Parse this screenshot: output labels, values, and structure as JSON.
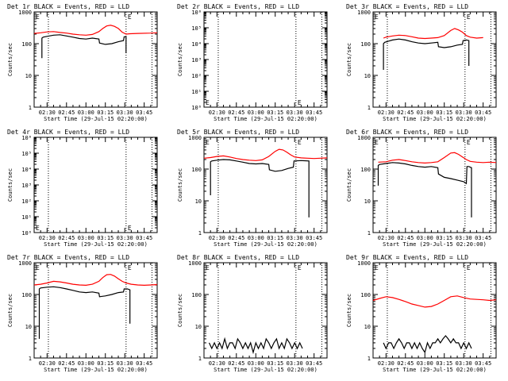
{
  "chart_data": [
    {
      "type": "line",
      "title": "Det 1r BLACK = Events, RED = LLD",
      "ylabel": "Counts/sec",
      "xlabel": "Start Time (29-Jul-15 02:20:00)",
      "yscale": "log",
      "ylim": [
        1,
        1000
      ],
      "ytick_labels": [
        "1",
        "10",
        "100",
        "1000"
      ],
      "ytick_values": [
        1,
        10,
        100,
        1000
      ],
      "xlim_minutes": [
        0,
        95
      ],
      "xtick_labels": [
        "02:30",
        "02:45",
        "03:00",
        "03:15",
        "03:30",
        "03:45"
      ],
      "xtick_minutes": [
        10,
        25,
        40,
        55,
        70,
        85
      ],
      "vlines_minutes": [
        11,
        71,
        91
      ],
      "markers": [
        "E",
        "E"
      ],
      "series": [
        {
          "color": "#ff0000",
          "x": [
            0,
            5,
            10,
            15,
            20,
            25,
            30,
            35,
            40,
            45,
            50,
            53,
            56,
            59,
            62,
            65,
            68,
            71,
            74,
            80,
            90,
            95
          ],
          "y": [
            210,
            220,
            235,
            240,
            225,
            215,
            200,
            190,
            185,
            195,
            240,
            300,
            360,
            380,
            350,
            300,
            230,
            200,
            205,
            210,
            215,
            220
          ]
        },
        {
          "color": "#000000",
          "x": [
            6,
            6,
            7,
            10,
            15,
            20,
            25,
            30,
            35,
            40,
            45,
            50,
            50.5,
            55,
            60,
            65,
            69,
            69.5,
            71,
            71
          ],
          "y": [
            35,
            150,
            160,
            170,
            185,
            190,
            175,
            160,
            145,
            140,
            150,
            140,
            105,
            95,
            100,
            115,
            125,
            165,
            165,
            50
          ]
        }
      ]
    },
    {
      "type": "line",
      "title": "Det 2r BLACK = Events, RED = LLD",
      "ylabel": "Counts/sec",
      "xlabel": "Start Time (29-Jul-15 02:20:00)",
      "yscale": "log",
      "ylim": [
        1,
        1000000
      ],
      "ytick_labels": [
        "10⁰",
        "10¹",
        "10²",
        "10³",
        "10⁴",
        "10⁵",
        "10⁶"
      ],
      "ytick_values": [
        1,
        10,
        100,
        1000,
        10000,
        100000,
        1000000
      ],
      "xlim_minutes": [
        0,
        95
      ],
      "xtick_labels": [
        "02:30",
        "02:45",
        "03:00",
        "03:15",
        "03:30",
        "03:45"
      ],
      "xtick_minutes": [
        10,
        25,
        40,
        55,
        70,
        85
      ],
      "vlines_minutes": [
        11,
        71,
        91
      ],
      "markers": [
        "E",
        "E"
      ],
      "series": []
    },
    {
      "type": "line",
      "title": "Det 3r BLACK = Events, RED = LLD",
      "ylabel": "Counts/sec",
      "xlabel": "Start Time (29-Jul-15 02:20:00)",
      "yscale": "log",
      "ylim": [
        1,
        1000
      ],
      "ytick_labels": [
        "1",
        "10",
        "100",
        "1000"
      ],
      "ytick_values": [
        1,
        10,
        100,
        1000
      ],
      "xlim_minutes": [
        0,
        95
      ],
      "xtick_labels": [
        "02:30",
        "02:45",
        "03:00",
        "03:15",
        "03:30",
        "03:45"
      ],
      "xtick_minutes": [
        10,
        25,
        40,
        55,
        70,
        85
      ],
      "vlines_minutes": [
        11,
        71,
        91
      ],
      "markers": [
        "E",
        "E"
      ],
      "series": [
        {
          "color": "#ff0000",
          "x": [
            8,
            10,
            15,
            20,
            25,
            30,
            35,
            40,
            45,
            50,
            55,
            60,
            63,
            66,
            69,
            72,
            75,
            80,
            85
          ],
          "y": [
            150,
            160,
            175,
            185,
            180,
            165,
            150,
            145,
            150,
            155,
            180,
            260,
            300,
            270,
            230,
            180,
            160,
            150,
            155
          ]
        },
        {
          "color": "#000000",
          "x": [
            8,
            8,
            9,
            12,
            15,
            20,
            25,
            30,
            35,
            40,
            45,
            50,
            50.5,
            55,
            60,
            65,
            69,
            69.5,
            72,
            74,
            74
          ],
          "y": [
            15,
            100,
            110,
            120,
            130,
            140,
            130,
            115,
            105,
            100,
            105,
            110,
            80,
            75,
            80,
            90,
            95,
            125,
            130,
            125,
            20
          ]
        }
      ]
    },
    {
      "type": "line",
      "title": "Det 4r BLACK = Events, RED = LLD",
      "ylabel": "Counts/sec",
      "xlabel": "Start Time (29-Jul-15 02:20:00)",
      "yscale": "log",
      "ylim": [
        1,
        1000000
      ],
      "ytick_labels": [
        "10⁰",
        "10¹",
        "10²",
        "10³",
        "10⁴",
        "10⁵",
        "10⁶"
      ],
      "ytick_values": [
        1,
        10,
        100,
        1000,
        10000,
        100000,
        1000000
      ],
      "xlim_minutes": [
        0,
        95
      ],
      "xtick_labels": [
        "02:30",
        "02:45",
        "03:00",
        "03:15",
        "03:30",
        "03:45"
      ],
      "xtick_minutes": [
        10,
        25,
        40,
        55,
        70,
        85
      ],
      "vlines_minutes": [
        11,
        71,
        91
      ],
      "markers": [
        "E",
        "E"
      ],
      "series": []
    },
    {
      "type": "line",
      "title": "Det 5r BLACK = Events, RED = LLD",
      "ylabel": "Counts/sec",
      "xlabel": "Start Time (29-Jul-15 02:20:00)",
      "yscale": "log",
      "ylim": [
        1,
        1000
      ],
      "ytick_labels": [
        "1",
        "10",
        "100",
        "1000"
      ],
      "ytick_values": [
        1,
        10,
        100,
        1000
      ],
      "xlim_minutes": [
        0,
        95
      ],
      "xtick_labels": [
        "02:30",
        "02:45",
        "03:00",
        "03:15",
        "03:30",
        "03:45"
      ],
      "xtick_minutes": [
        10,
        25,
        40,
        55,
        70,
        85
      ],
      "vlines_minutes": [
        11,
        71,
        91
      ],
      "markers": [
        "E",
        "E"
      ],
      "series": [
        {
          "color": "#ff0000",
          "x": [
            0,
            5,
            10,
            15,
            20,
            25,
            30,
            35,
            40,
            45,
            50,
            55,
            58,
            61,
            64,
            67,
            70,
            75,
            80,
            85,
            90,
            95
          ],
          "y": [
            220,
            230,
            250,
            260,
            240,
            215,
            200,
            190,
            185,
            195,
            250,
            360,
            420,
            400,
            340,
            280,
            240,
            225,
            220,
            215,
            220,
            225
          ]
        },
        {
          "color": "#000000",
          "x": [
            5,
            5,
            6,
            10,
            15,
            20,
            25,
            30,
            35,
            40,
            45,
            50,
            50.5,
            55,
            60,
            65,
            69,
            69.5,
            75,
            81,
            81
          ],
          "y": [
            15,
            170,
            180,
            190,
            200,
            195,
            180,
            165,
            150,
            145,
            150,
            140,
            95,
            85,
            90,
            105,
            115,
            180,
            185,
            180,
            3
          ]
        }
      ]
    },
    {
      "type": "line",
      "title": "Det 6r BLACK = Events, RED = LLD",
      "ylabel": "Counts/sec",
      "xlabel": "Start Time (29-Jul-15 02:20:00)",
      "yscale": "log",
      "ylim": [
        1,
        1000
      ],
      "ytick_labels": [
        "1",
        "10",
        "100",
        "1000"
      ],
      "ytick_values": [
        1,
        10,
        100,
        1000
      ],
      "xlim_minutes": [
        0,
        95
      ],
      "xtick_labels": [
        "02:30",
        "02:45",
        "03:00",
        "03:15",
        "03:30",
        "03:45"
      ],
      "xtick_minutes": [
        10,
        25,
        40,
        55,
        70,
        85
      ],
      "vlines_minutes": [
        11,
        71,
        91
      ],
      "markers": [
        "E",
        "E"
      ],
      "series": [
        {
          "color": "#ff0000",
          "x": [
            4,
            10,
            15,
            20,
            25,
            30,
            35,
            40,
            45,
            50,
            55,
            60,
            63,
            66,
            69,
            72,
            75,
            80,
            85,
            90,
            95
          ],
          "y": [
            165,
            170,
            190,
            200,
            185,
            170,
            160,
            155,
            160,
            170,
            230,
            320,
            330,
            290,
            240,
            200,
            175,
            165,
            160,
            165,
            160
          ]
        },
        {
          "color": "#000000",
          "x": [
            4,
            4,
            5,
            10,
            15,
            20,
            25,
            30,
            35,
            40,
            45,
            50,
            50.5,
            55,
            60,
            65,
            70,
            72,
            72.5,
            74,
            76,
            76
          ],
          "y": [
            30,
            130,
            140,
            150,
            160,
            155,
            145,
            130,
            120,
            115,
            120,
            110,
            70,
            55,
            50,
            45,
            40,
            35,
            120,
            120,
            110,
            3
          ]
        }
      ]
    },
    {
      "type": "line",
      "title": "Det 7r BLACK = Events, RED = LLD",
      "ylabel": "Counts/sec",
      "xlabel": "Start Time (29-Jul-15 02:20:00)",
      "yscale": "log",
      "ylim": [
        1,
        1000
      ],
      "ytick_labels": [
        "1",
        "10",
        "100",
        "1000"
      ],
      "ytick_values": [
        1,
        10,
        100,
        1000
      ],
      "xlim_minutes": [
        0,
        95
      ],
      "xtick_labels": [
        "02:30",
        "02:45",
        "03:00",
        "03:15",
        "03:30",
        "03:45"
      ],
      "xtick_minutes": [
        10,
        25,
        40,
        55,
        70,
        85
      ],
      "vlines_minutes": [
        11,
        71,
        91
      ],
      "markers": [
        "E",
        "E"
      ],
      "series": [
        {
          "color": "#ff0000",
          "x": [
            0,
            5,
            10,
            15,
            20,
            25,
            30,
            35,
            40,
            45,
            50,
            53,
            56,
            59,
            62,
            65,
            68,
            71,
            75,
            80,
            85,
            90,
            95
          ],
          "y": [
            200,
            210,
            230,
            260,
            250,
            230,
            210,
            200,
            195,
            210,
            260,
            340,
            420,
            430,
            380,
            310,
            260,
            230,
            210,
            200,
            195,
            200,
            205
          ]
        },
        {
          "color": "#000000",
          "x": [
            4,
            4,
            5,
            10,
            15,
            20,
            25,
            30,
            35,
            40,
            45,
            50,
            50.5,
            55,
            60,
            65,
            69,
            69.5,
            72,
            74,
            74
          ],
          "y": [
            4,
            150,
            160,
            170,
            175,
            165,
            150,
            135,
            120,
            115,
            120,
            110,
            85,
            90,
            100,
            115,
            120,
            150,
            150,
            140,
            12
          ]
        }
      ]
    },
    {
      "type": "line",
      "title": "Det 8r BLACK = Events, RED = LLD",
      "ylabel": "Counts/sec",
      "xlabel": "Start Time (29-Jul-15 02:20:00)",
      "yscale": "log",
      "ylim": [
        1,
        1000
      ],
      "ytick_labels": [
        "1",
        "10",
        "100",
        "1000"
      ],
      "ytick_values": [
        1,
        10,
        100,
        1000
      ],
      "xlim_minutes": [
        0,
        95
      ],
      "xtick_labels": [
        "02:30",
        "02:45",
        "03:00",
        "03:15",
        "03:30",
        "03:45"
      ],
      "xtick_minutes": [
        10,
        25,
        40,
        55,
        70,
        85
      ],
      "vlines_minutes": [
        11,
        71,
        91
      ],
      "markers": [
        "E",
        "E"
      ],
      "series": [
        {
          "color": "#000000",
          "x": [
            4,
            6,
            8,
            10,
            12,
            14,
            16,
            18,
            20,
            22,
            24,
            26,
            28,
            30,
            32,
            34,
            36,
            38,
            40,
            42,
            44,
            46,
            48,
            50,
            52,
            54,
            56,
            58,
            60,
            62,
            64,
            66,
            68,
            70,
            72,
            74,
            76
          ],
          "y": [
            3,
            2,
            3,
            2,
            3,
            2,
            4,
            2,
            3,
            3,
            2,
            4,
            3,
            2,
            3,
            2,
            3,
            1.5,
            3,
            2,
            3,
            2,
            4,
            3,
            2,
            3,
            4,
            2,
            3,
            2,
            4,
            3,
            2,
            3,
            2,
            3,
            2
          ]
        }
      ]
    },
    {
      "type": "line",
      "title": "Det 9r BLACK = Events, RED = LLD",
      "ylabel": "Counts/sec",
      "xlabel": "Start Time (29-Jul-15 02:20:00)",
      "yscale": "log",
      "ylim": [
        1,
        1000
      ],
      "ytick_labels": [
        "1",
        "10",
        "100",
        "1000"
      ],
      "ytick_values": [
        1,
        10,
        100,
        1000
      ],
      "xlim_minutes": [
        0,
        95
      ],
      "xtick_labels": [
        "02:30",
        "02:45",
        "03:00",
        "03:15",
        "03:30",
        "03:45"
      ],
      "xtick_minutes": [
        10,
        25,
        40,
        55,
        70,
        85
      ],
      "vlines_minutes": [
        11,
        71,
        91
      ],
      "markers": [
        "E",
        "E"
      ],
      "series": [
        {
          "color": "#ff0000",
          "x": [
            0,
            5,
            10,
            15,
            20,
            25,
            30,
            35,
            40,
            45,
            50,
            55,
            60,
            65,
            70,
            75,
            80,
            85,
            90,
            95
          ],
          "y": [
            65,
            75,
            85,
            80,
            70,
            60,
            50,
            45,
            40,
            42,
            50,
            65,
            85,
            90,
            80,
            72,
            70,
            68,
            65,
            68
          ]
        },
        {
          "color": "#000000",
          "x": [
            8,
            10,
            12,
            14,
            16,
            18,
            20,
            22,
            24,
            26,
            28,
            30,
            32,
            34,
            36,
            38,
            40,
            42,
            44,
            46,
            48,
            50,
            52,
            54,
            56,
            58,
            60,
            62,
            64,
            66,
            68,
            70,
            72,
            74,
            76
          ],
          "y": [
            3,
            2,
            3,
            3,
            2,
            3,
            4,
            3,
            2,
            3,
            3,
            2,
            3,
            2,
            3,
            2,
            1.5,
            3,
            2,
            3,
            3,
            4,
            3,
            4,
            5,
            4,
            3,
            4,
            3,
            3,
            2,
            3,
            2,
            3,
            2
          ]
        }
      ]
    }
  ]
}
